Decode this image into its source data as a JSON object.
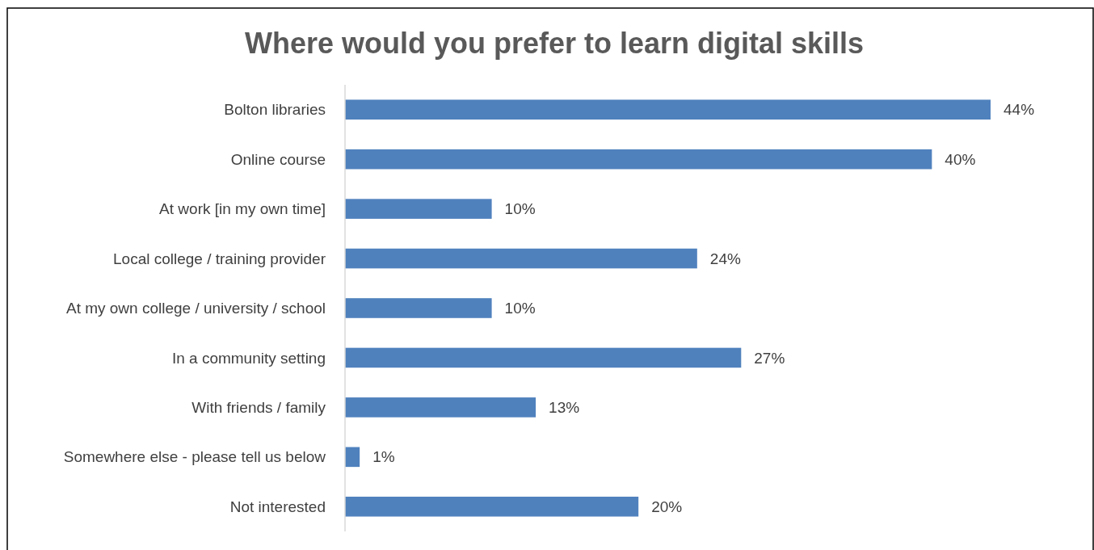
{
  "chart_data": {
    "type": "bar",
    "orientation": "horizontal",
    "title": "Where would you prefer to learn digital skills",
    "categories": [
      "Bolton libraries",
      "Online course",
      "At work [in my own time]",
      "Local college / training provider",
      "At my own college / university / school",
      "In a community setting",
      "With friends / family",
      "Somewhere else - please tell us below",
      "Not interested"
    ],
    "values": [
      44,
      40,
      10,
      24,
      10,
      27,
      13,
      1,
      20
    ],
    "value_labels": [
      "44%",
      "40%",
      "10%",
      "24%",
      "10%",
      "27%",
      "13%",
      "1%",
      "20%"
    ],
    "color": "#4f81bd"
  }
}
